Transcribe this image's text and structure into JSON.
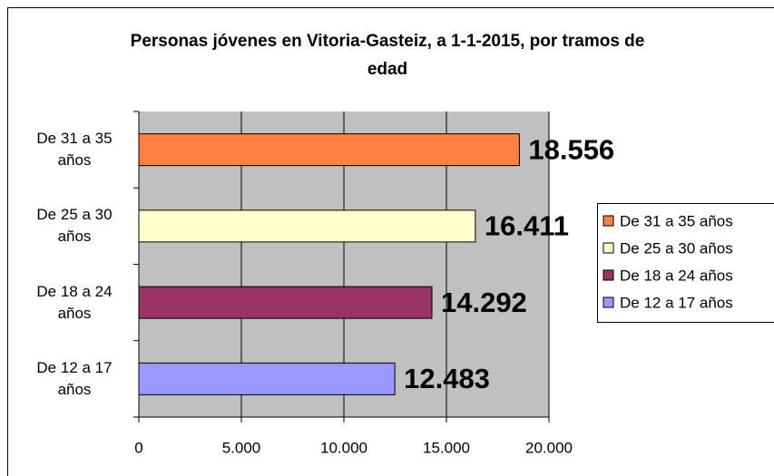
{
  "chart_data": {
    "type": "bar",
    "orientation": "horizontal",
    "title": "Personas jóvenes en Vitoria-Gasteiz, a 1-1-2015, por tramos de edad",
    "categories": [
      "De 31 a 35 años",
      "De 25 a 30 años",
      "De 18 a 24 años",
      "De 12 a 17 años"
    ],
    "values": [
      18556,
      16411,
      14292,
      12483
    ],
    "value_labels": [
      "18.556",
      "16.411",
      "14.292",
      "12.483"
    ],
    "colors": [
      "#ff8040",
      "#ffffcc",
      "#993366",
      "#9999ff"
    ],
    "xlim": [
      0,
      20000
    ],
    "xticks": [
      0,
      {
        "value": 5000,
        "label": "5.000"
      },
      {
        "value": 10000,
        "label": "10.000"
      },
      {
        "value": 15000,
        "label": "15.000"
      },
      {
        "value": 20000,
        "label": "20.000"
      }
    ],
    "grid": true,
    "legend": "right"
  }
}
